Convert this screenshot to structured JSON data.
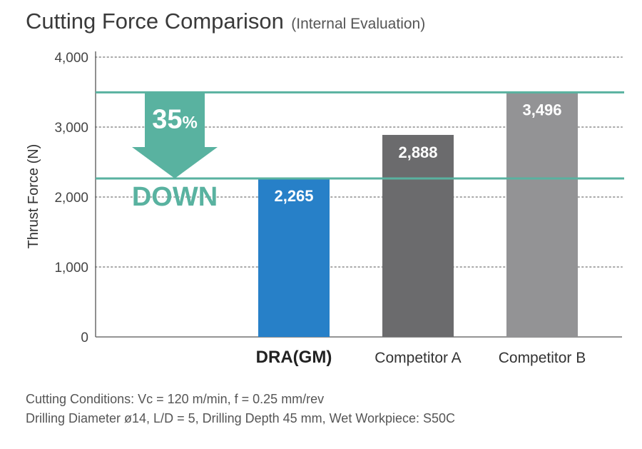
{
  "chart_data": {
    "type": "bar",
    "title": "Cutting Force Comparison",
    "subtitle": "(Internal Evaluation)",
    "ylabel": "Thrust Force (N)",
    "xlabel": "",
    "ylim": [
      0,
      4000
    ],
    "yticks": [
      0,
      1000,
      2000,
      3000,
      4000
    ],
    "ytick_labels": [
      "0",
      "1,000",
      "2,000",
      "3,000",
      "4,000"
    ],
    "grid": true,
    "categories": [
      "DRA(GM)",
      "Competitor A",
      "Competitor B"
    ],
    "values": [
      2265,
      2888,
      3496
    ],
    "value_labels": [
      "2,265",
      "2,888",
      "3,496"
    ],
    "bar_colors": [
      "#2780c8",
      "#6b6b6d",
      "#939395"
    ],
    "reference_lines": [
      2265,
      3496
    ],
    "reference_color": "#59b2a0",
    "annotation": {
      "number": "35",
      "unit": "%",
      "text": "DOWN"
    }
  },
  "conditions": {
    "line1": "Cutting Conditions: Vc = 120 m/min, f = 0.25 mm/rev",
    "line2": "Drilling Diameter ø14, L/D = 5, Drilling Depth 45 mm, Wet  Workpiece: S50C"
  }
}
